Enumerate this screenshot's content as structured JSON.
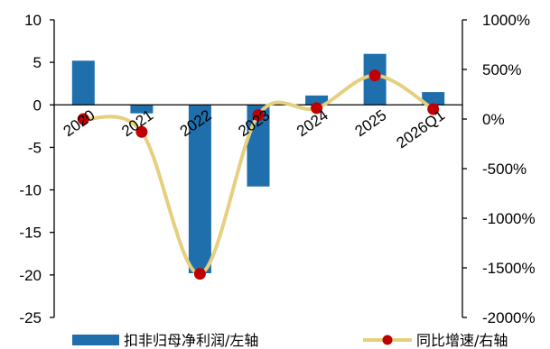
{
  "chart_data": {
    "type": "bar",
    "categories": [
      "2020",
      "2021",
      "2022",
      "2023",
      "2024",
      "2025",
      "2026Q1"
    ],
    "series": [
      {
        "name": "扣非归母净利润/左轴",
        "type": "bar",
        "axis": "left",
        "color": "#1f6fad",
        "values": [
          5.2,
          -1.0,
          -19.8,
          -9.6,
          1.1,
          6.0,
          1.5
        ]
      },
      {
        "name": "同比增速/右轴",
        "type": "line",
        "axis": "right",
        "line_color": "#e6cf7e",
        "marker_color": "#c00000",
        "smooth": true,
        "values": [
          0,
          -130,
          -1560,
          40,
          110,
          440,
          100
        ]
      }
    ],
    "y_left": {
      "ylim": [
        -25,
        10
      ],
      "ticks": [
        10,
        5,
        0,
        -5,
        -10,
        -15,
        -20,
        -25
      ],
      "tick_labels": [
        "10",
        "5",
        "0",
        "-5",
        "-10",
        "-15",
        "-20",
        "-25"
      ]
    },
    "y_right": {
      "ylim": [
        -2000,
        1000
      ],
      "ticks": [
        1000,
        500,
        0,
        -500,
        -1000,
        -1500,
        -2000
      ],
      "tick_labels": [
        "1000%",
        "500%",
        "0%",
        "-500%",
        "-1000%",
        "-1500%",
        "-2000%"
      ]
    },
    "legend": {
      "position": "bottom",
      "items": [
        "扣非归母净利润/左轴",
        "同比增速/右轴"
      ]
    },
    "grid": false
  }
}
